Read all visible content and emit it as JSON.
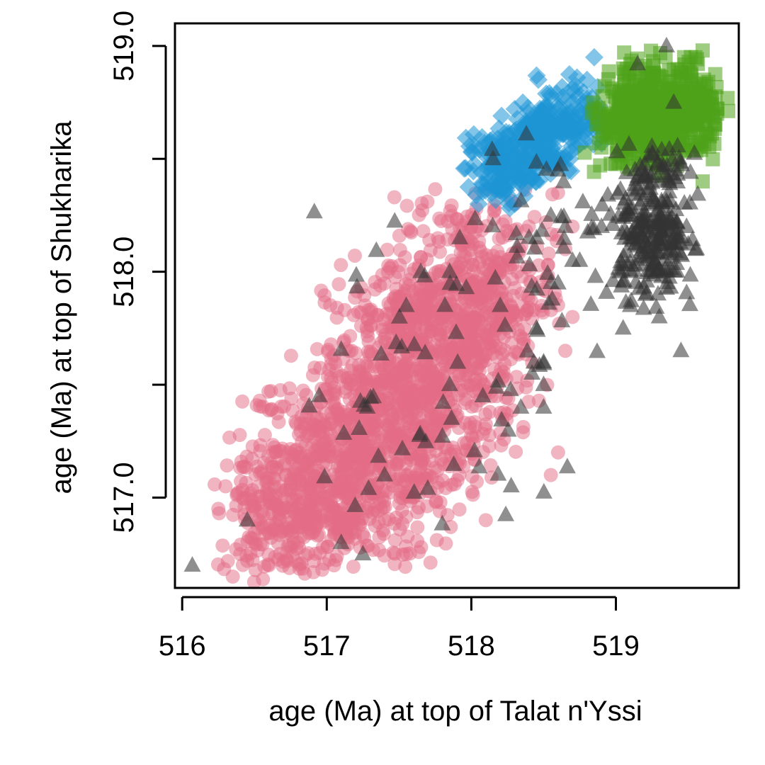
{
  "chart_data": {
    "type": "scatter",
    "title": "",
    "xlabel": "age (Ma) at top of Talat n'Yssi",
    "ylabel": "age (Ma) at top of Shukharika",
    "xlim": [
      515.95,
      519.85
    ],
    "ylim": [
      516.6,
      519.1
    ],
    "x_ticks": [
      516,
      517,
      518,
      519
    ],
    "x_tick_labels": [
      "516",
      "517",
      "518",
      "519"
    ],
    "y_ticks": [
      517.0,
      517.5,
      518.0,
      518.5,
      519.0
    ],
    "y_tick_labels": [
      "517.0",
      "",
      "518.0",
      "",
      "519.0"
    ],
    "grid": false,
    "legend": "none",
    "series": [
      {
        "marker": "circle",
        "color": "#e36b86",
        "opacity": 0.5,
        "clusters": [
          {
            "center": [
              517.2,
              517.15
            ],
            "spread": [
              0.38,
              0.22
            ],
            "count": 700
          },
          {
            "center": [
              517.65,
              517.55
            ],
            "spread": [
              0.33,
              0.25
            ],
            "count": 650
          },
          {
            "center": [
              518.0,
              517.9
            ],
            "spread": [
              0.28,
              0.22
            ],
            "count": 450
          },
          {
            "center": [
              516.75,
              516.95
            ],
            "spread": [
              0.25,
              0.15
            ],
            "count": 250
          }
        ],
        "points": [
          [
            516.25,
            516.95
          ],
          [
            516.3,
            517.05
          ],
          [
            516.45,
            516.72
          ],
          [
            516.35,
            516.65
          ],
          [
            516.45,
            516.6
          ],
          [
            516.6,
            516.7
          ],
          [
            517.05,
            516.7
          ],
          [
            517.55,
            516.75
          ],
          [
            518.1,
            516.9
          ],
          [
            518.55,
            517.1
          ],
          [
            518.6,
            517.2
          ],
          [
            518.65,
            517.65
          ],
          [
            518.7,
            517.8
          ],
          [
            518.65,
            518.1
          ],
          [
            518.7,
            518.2
          ],
          [
            518.0,
            518.2
          ],
          [
            518.3,
            518.3
          ],
          [
            518.6,
            518.35
          ],
          [
            516.5,
            516.8
          ],
          [
            516.8,
            516.8
          ]
        ]
      },
      {
        "marker": "diamond",
        "color": "#1e96d6",
        "opacity": 0.55,
        "clusters": [
          {
            "center": [
              518.2,
              518.45
            ],
            "spread": [
              0.12,
              0.08
            ],
            "count": 120
          },
          {
            "center": [
              518.45,
              518.58
            ],
            "spread": [
              0.14,
              0.08
            ],
            "count": 150
          },
          {
            "center": [
              518.7,
              518.7
            ],
            "spread": [
              0.12,
              0.08
            ],
            "count": 90
          }
        ],
        "points": [
          [
            518.85,
            518.95
          ],
          [
            518.8,
            518.85
          ],
          [
            518.55,
            518.78
          ],
          [
            518.9,
            518.6
          ],
          [
            518.7,
            518.75
          ],
          [
            518.05,
            518.3
          ],
          [
            518.3,
            518.3
          ]
        ]
      },
      {
        "marker": "square",
        "color": "#4fa31a",
        "opacity": 0.55,
        "clusters": [
          {
            "center": [
              519.35,
              518.72
            ],
            "spread": [
              0.2,
              0.12
            ],
            "count": 400
          },
          {
            "center": [
              519.15,
              518.62
            ],
            "spread": [
              0.18,
              0.1
            ],
            "count": 150
          }
        ],
        "points": [
          [
            519.55,
            518.95
          ],
          [
            519.6,
            518.98
          ],
          [
            519.05,
            518.9
          ],
          [
            519.1,
            518.92
          ],
          [
            519.45,
            518.88
          ],
          [
            518.95,
            518.7
          ],
          [
            518.9,
            518.55
          ],
          [
            519.7,
            518.7
          ],
          [
            519.65,
            518.6
          ],
          [
            519.6,
            518.4
          ],
          [
            519.1,
            518.5
          ]
        ]
      },
      {
        "marker": "triangle",
        "color": "#333333",
        "opacity": 0.55,
        "clusters": [
          {
            "center": [
              519.25,
              518.2
            ],
            "spread": [
              0.15,
              0.17
            ],
            "count": 260
          },
          {
            "center": [
              518.55,
              518.1
            ],
            "spread": [
              0.25,
              0.3
            ],
            "count": 40
          },
          {
            "center": [
              517.7,
              517.5
            ],
            "spread": [
              0.45,
              0.4
            ],
            "count": 60
          }
        ],
        "points": [
          [
            519.35,
            519.0
          ],
          [
            519.15,
            518.92
          ],
          [
            519.4,
            518.75
          ],
          [
            518.15,
            518.5
          ],
          [
            518.6,
            518.45
          ],
          [
            518.9,
            518.2
          ],
          [
            519.1,
            517.85
          ],
          [
            519.3,
            517.8
          ],
          [
            519.05,
            517.75
          ],
          [
            519.45,
            517.65
          ],
          [
            518.7,
            518.05
          ],
          [
            518.45,
            517.75
          ],
          [
            518.5,
            517.6
          ],
          [
            516.07,
            516.7
          ],
          [
            517.07,
            516.6
          ],
          [
            516.45,
            516.9
          ],
          [
            517.1,
            516.8
          ],
          [
            517.25,
            516.75
          ],
          [
            517.4,
            517.1
          ],
          [
            517.28,
            517.4
          ],
          [
            517.85,
            517.5
          ],
          [
            517.55,
            517.85
          ],
          [
            517.65,
            518.0
          ],
          [
            517.85,
            518.0
          ],
          [
            518.2,
            517.85
          ],
          [
            518.5,
            517.5
          ],
          [
            518.5,
            517.4
          ],
          [
            517.92,
            518.15
          ],
          [
            518.55,
            518.25
          ],
          [
            518.65,
            518.2
          ],
          [
            518.45,
            518.15
          ],
          [
            518.75,
            518.05
          ],
          [
            518.6,
            517.95
          ]
        ]
      }
    ]
  }
}
